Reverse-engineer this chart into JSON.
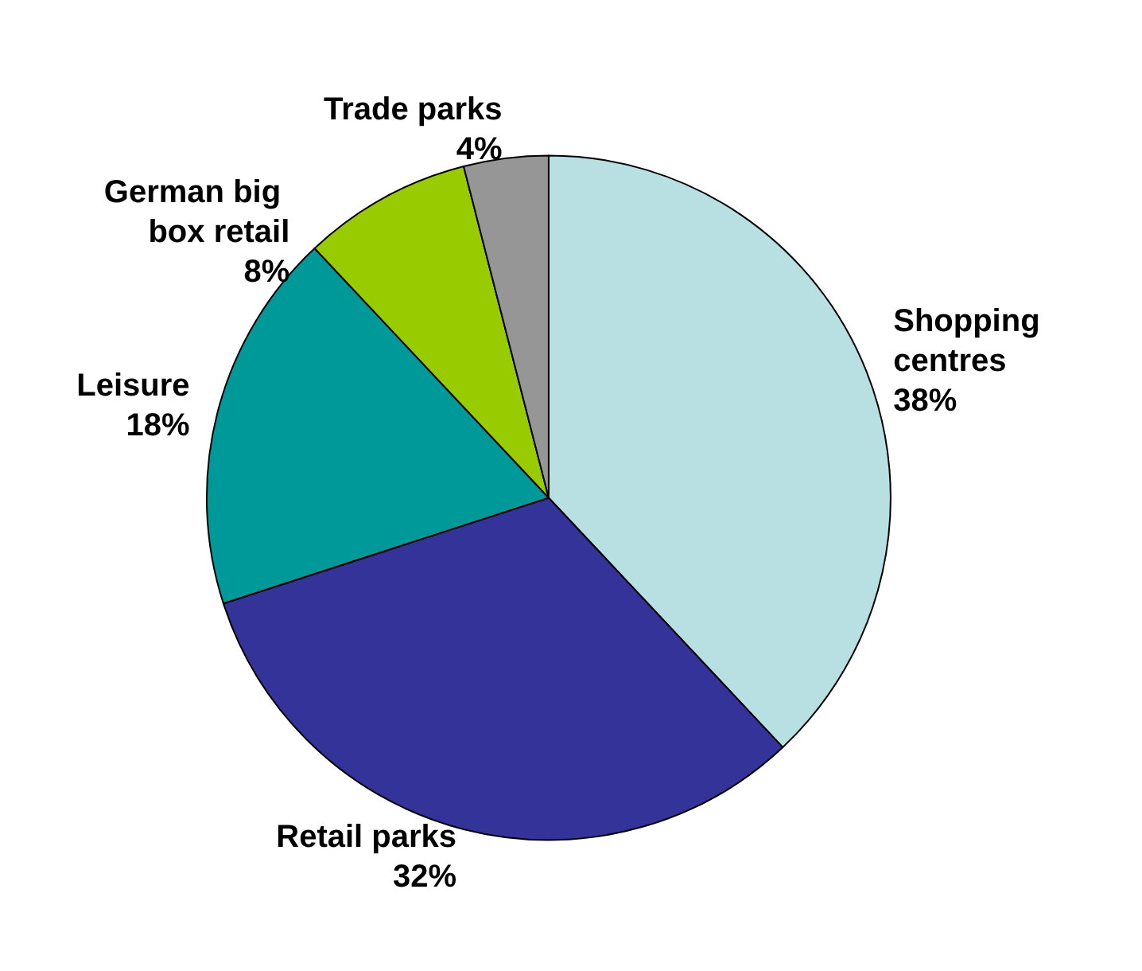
{
  "chart_data": {
    "type": "pie",
    "categories": [
      "Shopping centres",
      "Retail parks",
      "Leisure",
      "German big box retail",
      "Trade parks"
    ],
    "values": [
      38,
      32,
      18,
      8,
      4
    ],
    "value_labels": [
      "38%",
      "32%",
      "18%",
      "8%",
      "4%"
    ],
    "colors": [
      "#b8e0e3",
      "#333399",
      "#009999",
      "#99cc00",
      "#969696"
    ]
  }
}
